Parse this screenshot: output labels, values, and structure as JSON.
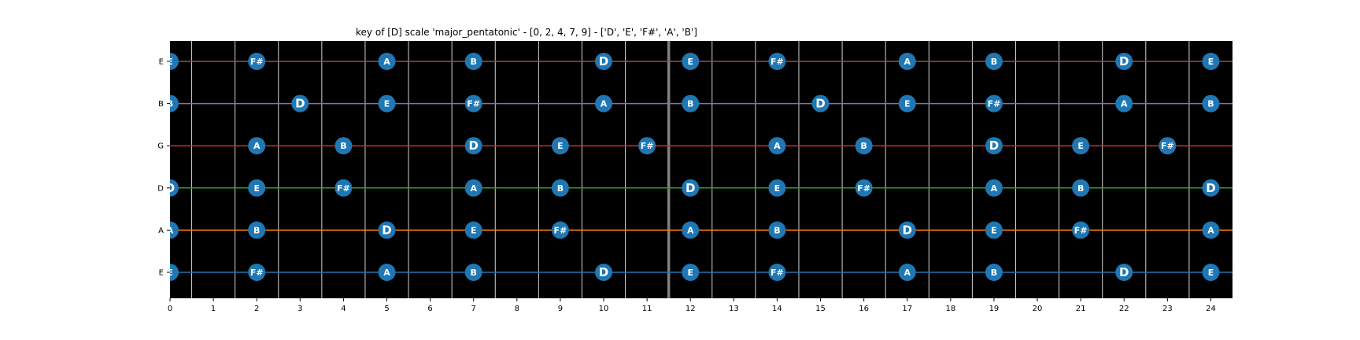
{
  "chart_data": {
    "type": "scatter",
    "title": "key of [D] scale 'major_pentatonic' - [0, 2, 4, 7, 9] - ['D', 'E', 'F#', 'A', 'B']",
    "xlabel": "",
    "ylabel": "",
    "xlim": [
      0,
      24.5
    ],
    "x_ticks": [
      "0",
      "1",
      "2",
      "3",
      "4",
      "5",
      "6",
      "7",
      "8",
      "9",
      "10",
      "11",
      "12",
      "13",
      "14",
      "15",
      "16",
      "17",
      "18",
      "19",
      "20",
      "21",
      "22",
      "23",
      "24"
    ],
    "grid": false,
    "legend": "none",
    "root_note": "D",
    "background_color": "#000000",
    "marker_color": "#1f77b4",
    "fret_line_color": "#d3d3d3",
    "nut_line_color": "#808080",
    "nut_position": 11.5,
    "strings": [
      {
        "name": "E",
        "color": "#1f77b4",
        "notes": [
          {
            "x": 0,
            "label": "E"
          },
          {
            "x": 2,
            "label": "F#"
          },
          {
            "x": 5,
            "label": "A"
          },
          {
            "x": 7,
            "label": "B"
          },
          {
            "x": 10,
            "label": "D"
          },
          {
            "x": 12,
            "label": "E"
          },
          {
            "x": 14,
            "label": "F#"
          },
          {
            "x": 17,
            "label": "A"
          },
          {
            "x": 19,
            "label": "B"
          },
          {
            "x": 22,
            "label": "D"
          },
          {
            "x": 24,
            "label": "E"
          }
        ]
      },
      {
        "name": "A",
        "color": "#ff7f0e",
        "notes": [
          {
            "x": 0,
            "label": "A"
          },
          {
            "x": 2,
            "label": "B"
          },
          {
            "x": 5,
            "label": "D"
          },
          {
            "x": 7,
            "label": "E"
          },
          {
            "x": 9,
            "label": "F#"
          },
          {
            "x": 12,
            "label": "A"
          },
          {
            "x": 14,
            "label": "B"
          },
          {
            "x": 17,
            "label": "D"
          },
          {
            "x": 19,
            "label": "E"
          },
          {
            "x": 21,
            "label": "F#"
          },
          {
            "x": 24,
            "label": "A"
          }
        ]
      },
      {
        "name": "D",
        "color": "#2ca02c",
        "notes": [
          {
            "x": 0,
            "label": "D"
          },
          {
            "x": 2,
            "label": "E"
          },
          {
            "x": 4,
            "label": "F#"
          },
          {
            "x": 7,
            "label": "A"
          },
          {
            "x": 9,
            "label": "B"
          },
          {
            "x": 12,
            "label": "D"
          },
          {
            "x": 14,
            "label": "E"
          },
          {
            "x": 16,
            "label": "F#"
          },
          {
            "x": 19,
            "label": "A"
          },
          {
            "x": 21,
            "label": "B"
          },
          {
            "x": 24,
            "label": "D"
          }
        ]
      },
      {
        "name": "G",
        "color": "#d62728",
        "notes": [
          {
            "x": 2,
            "label": "A"
          },
          {
            "x": 4,
            "label": "B"
          },
          {
            "x": 7,
            "label": "D"
          },
          {
            "x": 9,
            "label": "E"
          },
          {
            "x": 11,
            "label": "F#"
          },
          {
            "x": 14,
            "label": "A"
          },
          {
            "x": 16,
            "label": "B"
          },
          {
            "x": 19,
            "label": "D"
          },
          {
            "x": 21,
            "label": "E"
          },
          {
            "x": 23,
            "label": "F#"
          }
        ]
      },
      {
        "name": "B",
        "color": "#9467bd",
        "notes": [
          {
            "x": 0,
            "label": "B"
          },
          {
            "x": 3,
            "label": "D"
          },
          {
            "x": 5,
            "label": "E"
          },
          {
            "x": 7,
            "label": "F#"
          },
          {
            "x": 10,
            "label": "A"
          },
          {
            "x": 12,
            "label": "B"
          },
          {
            "x": 15,
            "label": "D"
          },
          {
            "x": 17,
            "label": "E"
          },
          {
            "x": 19,
            "label": "F#"
          },
          {
            "x": 22,
            "label": "A"
          },
          {
            "x": 24,
            "label": "B"
          }
        ]
      },
      {
        "name": "E",
        "color": "#8c564b",
        "notes": [
          {
            "x": 0,
            "label": "E"
          },
          {
            "x": 2,
            "label": "F#"
          },
          {
            "x": 5,
            "label": "A"
          },
          {
            "x": 7,
            "label": "B"
          },
          {
            "x": 10,
            "label": "D"
          },
          {
            "x": 12,
            "label": "E"
          },
          {
            "x": 14,
            "label": "F#"
          },
          {
            "x": 17,
            "label": "A"
          },
          {
            "x": 19,
            "label": "B"
          },
          {
            "x": 22,
            "label": "D"
          },
          {
            "x": 24,
            "label": "E"
          }
        ]
      }
    ]
  }
}
